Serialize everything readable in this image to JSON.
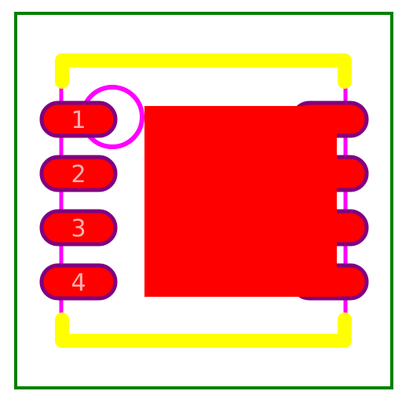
{
  "footprint": {
    "colors": {
      "courtyard": "#008000",
      "silkscreen": "#ffff00",
      "fab": "#ff00ff",
      "pad_fill": "#ff0000",
      "pad_outline": "#800080",
      "label": "#ffb0b0",
      "background": "#ffffff"
    },
    "pads_left": [
      {
        "label": "1"
      },
      {
        "label": "2"
      },
      {
        "label": "3"
      },
      {
        "label": "4"
      }
    ],
    "pads_right": [
      {
        "label": ""
      },
      {
        "label": ""
      },
      {
        "label": ""
      },
      {
        "label": ""
      }
    ],
    "pin1_marker": "pin-1-circle",
    "thermal_pad": "exposed-pad"
  }
}
